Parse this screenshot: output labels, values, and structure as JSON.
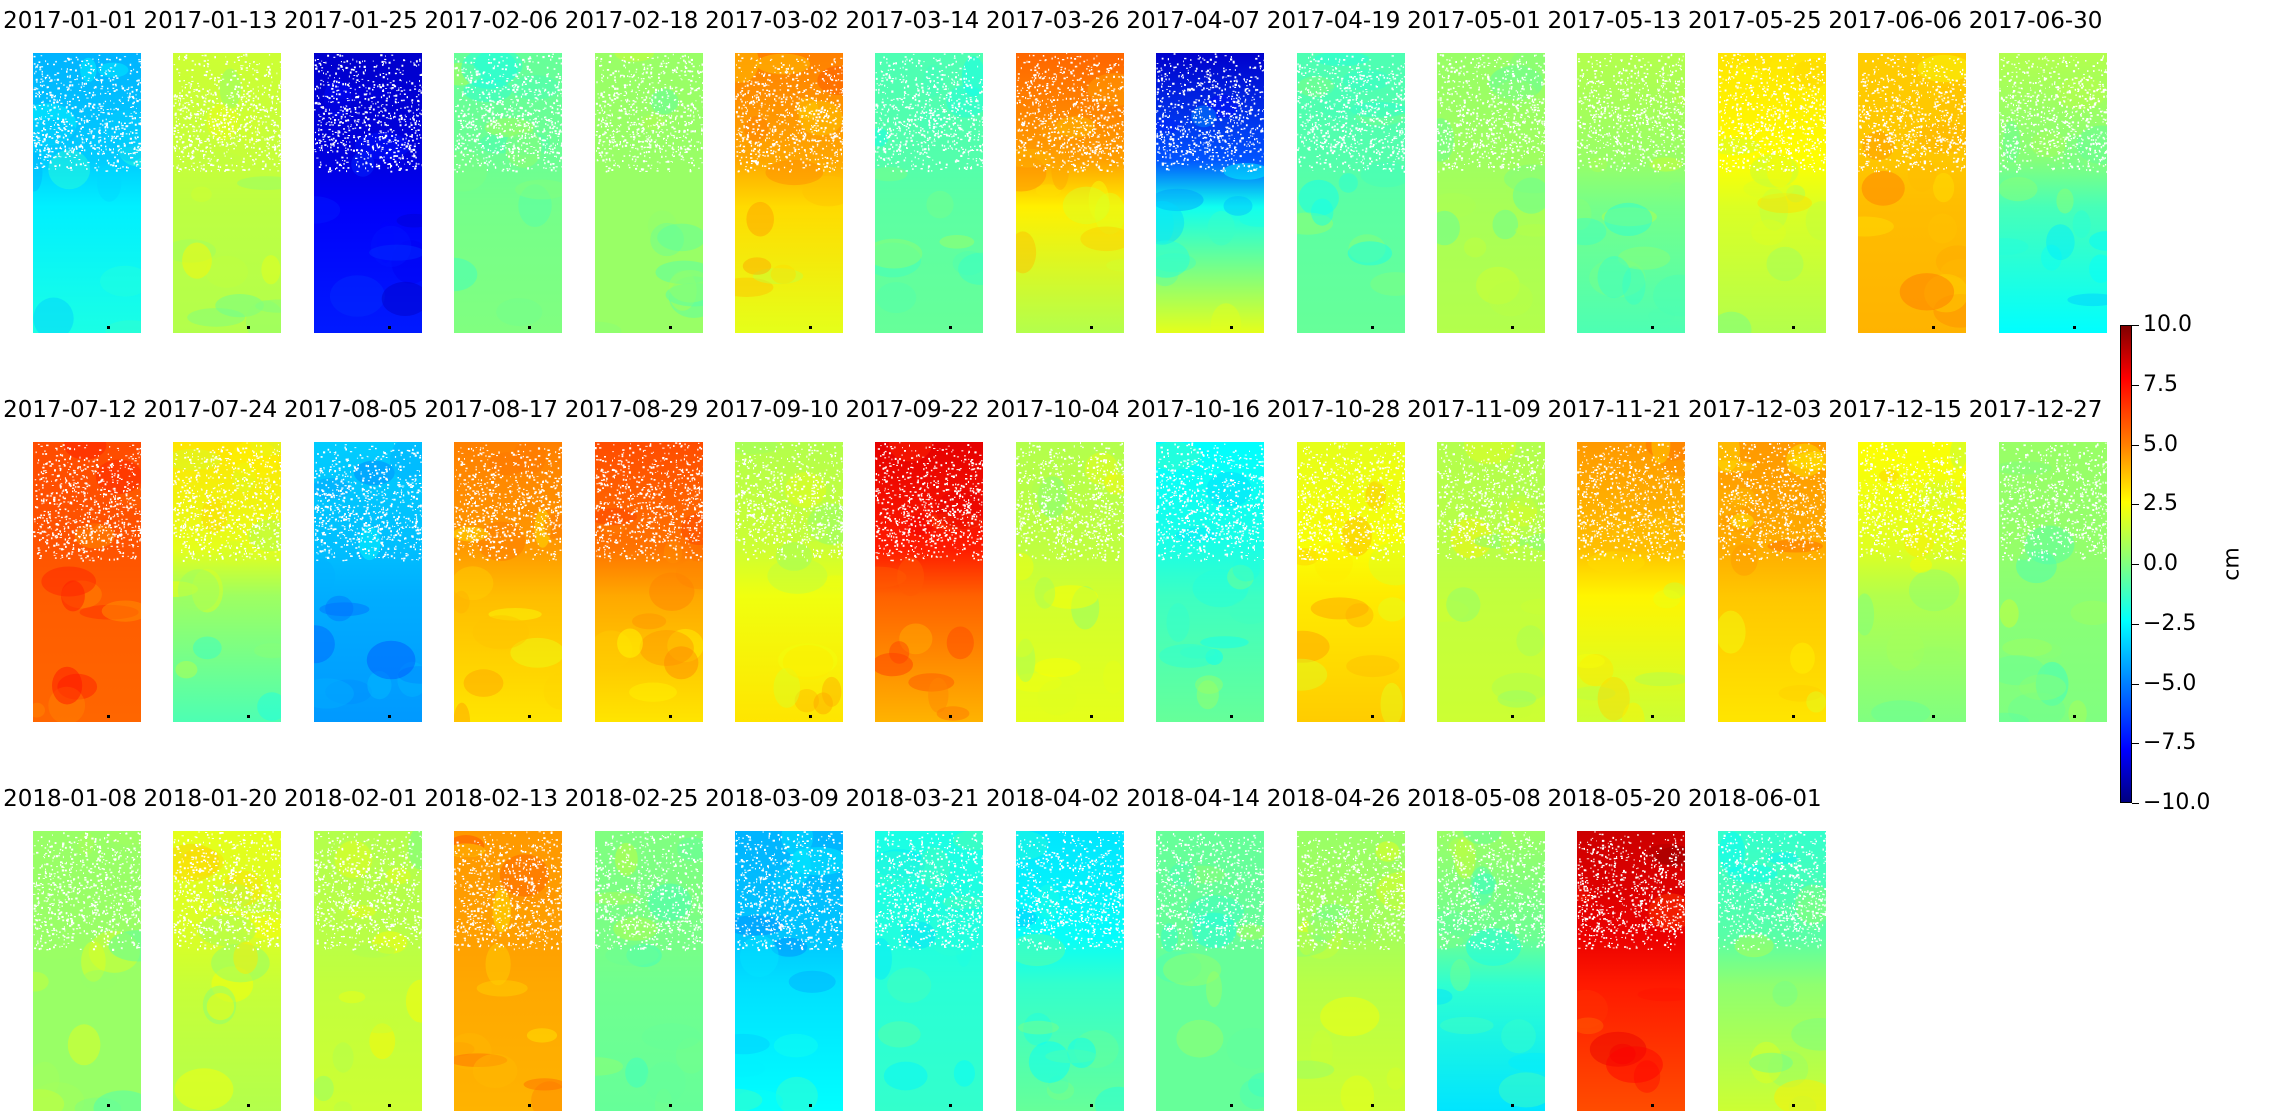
{
  "chart_data": {
    "type": "heatmap",
    "colormap": "jet",
    "colorbar": {
      "min": -10.0,
      "max": 10.0,
      "ticks": [
        10.0,
        7.5,
        5.0,
        2.5,
        0.0,
        -2.5,
        -5.0,
        -7.5,
        -10.0
      ],
      "tick_labels": [
        "10.0",
        "7.5",
        "5.0",
        "2.5",
        "0.0",
        "−2.5",
        "−5.0",
        "−7.5",
        "−10.0"
      ],
      "unit_label": "cm",
      "placement": "right"
    },
    "rows": [
      [
        {
          "date": "2017-01-01",
          "top": -4.0,
          "bottom": -2.0
        },
        {
          "date": "2017-01-13",
          "top": 1.5,
          "bottom": 1.0
        },
        {
          "date": "2017-01-25",
          "top": -8.5,
          "bottom": -7.0
        },
        {
          "date": "2017-02-06",
          "top": -0.5,
          "bottom": 0.0
        },
        {
          "date": "2017-02-18",
          "top": 0.5,
          "bottom": 0.5
        },
        {
          "date": "2017-03-02",
          "top": 5.0,
          "bottom": 2.0
        },
        {
          "date": "2017-03-14",
          "top": -1.0,
          "bottom": -0.5
        },
        {
          "date": "2017-03-26",
          "top": 5.5,
          "bottom": 1.0
        },
        {
          "date": "2017-04-07",
          "top": -8.5,
          "bottom": 2.0
        },
        {
          "date": "2017-04-19",
          "top": -1.0,
          "bottom": -0.5
        },
        {
          "date": "2017-05-01",
          "top": 0.5,
          "bottom": 1.0
        },
        {
          "date": "2017-05-13",
          "top": 1.0,
          "bottom": -1.0
        },
        {
          "date": "2017-05-25",
          "top": 3.0,
          "bottom": 1.0
        },
        {
          "date": "2017-06-06",
          "top": 3.5,
          "bottom": 4.0
        },
        {
          "date": "2017-06-30",
          "top": 1.0,
          "bottom": -2.5
        }
      ],
      [
        {
          "date": "2017-07-12",
          "top": 6.0,
          "bottom": 5.5
        },
        {
          "date": "2017-07-24",
          "top": 3.0,
          "bottom": -1.0
        },
        {
          "date": "2017-08-05",
          "top": -3.5,
          "bottom": -4.5
        },
        {
          "date": "2017-08-17",
          "top": 5.0,
          "bottom": 3.0
        },
        {
          "date": "2017-08-29",
          "top": 6.0,
          "bottom": 3.0
        },
        {
          "date": "2017-09-10",
          "top": 1.0,
          "bottom": 3.0
        },
        {
          "date": "2017-09-22",
          "top": 8.0,
          "bottom": 4.0
        },
        {
          "date": "2017-10-04",
          "top": 1.0,
          "bottom": 2.0
        },
        {
          "date": "2017-10-16",
          "top": -2.5,
          "bottom": -0.5
        },
        {
          "date": "2017-10-28",
          "top": 2.0,
          "bottom": 3.5
        },
        {
          "date": "2017-11-09",
          "top": 1.0,
          "bottom": 1.5
        },
        {
          "date": "2017-11-21",
          "top": 4.5,
          "bottom": 1.5
        },
        {
          "date": "2017-12-03",
          "top": 4.5,
          "bottom": 3.0
        },
        {
          "date": "2017-12-15",
          "top": 2.5,
          "bottom": 0.0
        },
        {
          "date": "2017-12-27",
          "top": 0.5,
          "bottom": 0.0
        }
      ],
      [
        {
          "date": "2018-01-08",
          "top": 0.5,
          "bottom": 0.5
        },
        {
          "date": "2018-01-20",
          "top": 2.0,
          "bottom": 1.0
        },
        {
          "date": "2018-02-01",
          "top": 1.0,
          "bottom": 1.5
        },
        {
          "date": "2018-02-13",
          "top": 4.5,
          "bottom": 4.0
        },
        {
          "date": "2018-02-25",
          "top": 0.0,
          "bottom": -0.5
        },
        {
          "date": "2018-03-09",
          "top": -4.0,
          "bottom": -2.5
        },
        {
          "date": "2018-03-21",
          "top": -2.0,
          "bottom": -1.5
        },
        {
          "date": "2018-04-02",
          "top": -3.0,
          "bottom": -0.5
        },
        {
          "date": "2018-04-14",
          "top": -0.5,
          "bottom": -0.5
        },
        {
          "date": "2018-04-26",
          "top": 0.5,
          "bottom": 1.5
        },
        {
          "date": "2018-05-08",
          "top": 0.5,
          "bottom": -3.0
        },
        {
          "date": "2018-05-20",
          "top": 8.5,
          "bottom": 6.0
        },
        {
          "date": "2018-06-01",
          "top": -1.5,
          "bottom": 1.5
        }
      ]
    ]
  }
}
